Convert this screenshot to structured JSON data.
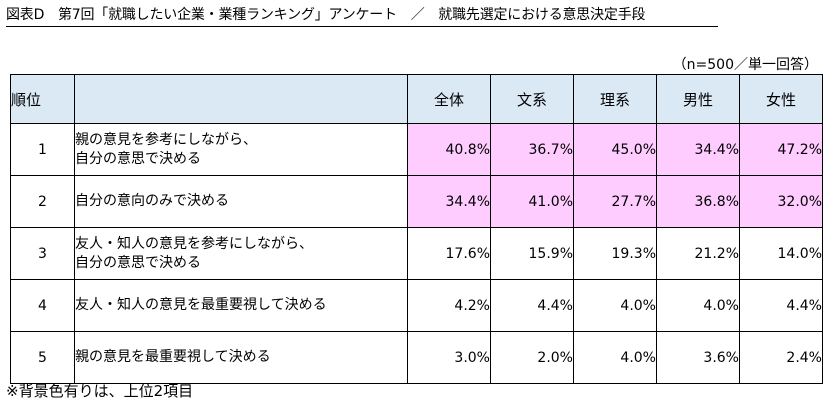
{
  "title": "図表D　第7回「就職したい企業・業種ランキング」アンケート　／　就職先選定における意思決定手段",
  "note": "（n=500／単一回答）",
  "table": {
    "headers": [
      "順位",
      "",
      "全体",
      "文系",
      "理系",
      "男性",
      "女性"
    ],
    "rows": [
      {
        "rank": "1",
        "method_lines": [
          "親の意見を参考にしながら、",
          "自分の意思で決める"
        ],
        "values": [
          "40.8%",
          "36.7%",
          "45.0%",
          "34.4%",
          "47.2%"
        ],
        "highlight": true
      },
      {
        "rank": "2",
        "method_lines": [
          "自分の意向のみで決める"
        ],
        "values": [
          "34.4%",
          "41.0%",
          "27.7%",
          "36.8%",
          "32.0%"
        ],
        "highlight": true
      },
      {
        "rank": "3",
        "method_lines": [
          "友人・知人の意見を参考にしながら、",
          "自分の意思で決める"
        ],
        "values": [
          "17.6%",
          "15.9%",
          "19.3%",
          "21.2%",
          "14.0%"
        ],
        "highlight": false
      },
      {
        "rank": "4",
        "method_lines": [
          "友人・知人の意見を最重要視して決める"
        ],
        "values": [
          "4.2%",
          "4.4%",
          "4.0%",
          "4.0%",
          "4.4%"
        ],
        "highlight": false
      },
      {
        "rank": "5",
        "method_lines": [
          "親の意見を最重要視して決める"
        ],
        "values": [
          "3.0%",
          "2.0%",
          "4.0%",
          "3.6%",
          "2.4%"
        ],
        "highlight": false
      }
    ]
  },
  "footer": "※背景色有りは、上位2項目",
  "colors": {
    "header_bg": "#dbe9f5",
    "highlight_bg": "#ffccff"
  }
}
